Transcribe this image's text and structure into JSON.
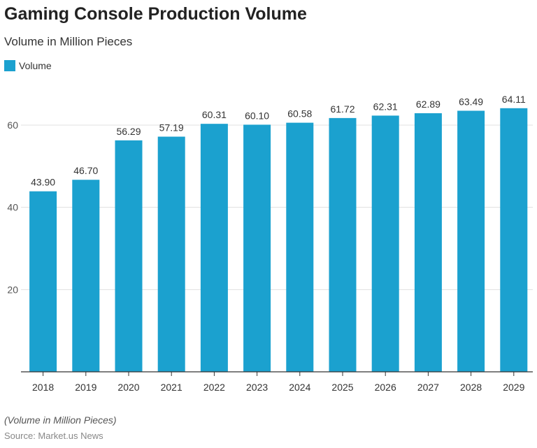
{
  "title": "Gaming Console Production Volume",
  "subtitle": "Volume in Million Pieces",
  "note": "(Volume in Million Pieces)",
  "source": "Source: Market.us News",
  "chart_data": {
    "type": "bar",
    "title": "Gaming Console Production Volume",
    "subtitle": "Volume in Million Pieces",
    "categories": [
      "2018",
      "2019",
      "2020",
      "2021",
      "2022",
      "2023",
      "2024",
      "2025",
      "2026",
      "2027",
      "2028",
      "2029"
    ],
    "series": [
      {
        "name": "Volume",
        "values": [
          43.9,
          46.7,
          56.29,
          57.19,
          60.31,
          60.1,
          60.58,
          61.72,
          62.31,
          62.89,
          63.49,
          64.11
        ],
        "color": "#1ba1cf"
      }
    ],
    "yticks": [
      20,
      40,
      60
    ],
    "ylim": [
      0,
      70
    ],
    "grid": true,
    "legend": "top-left"
  }
}
